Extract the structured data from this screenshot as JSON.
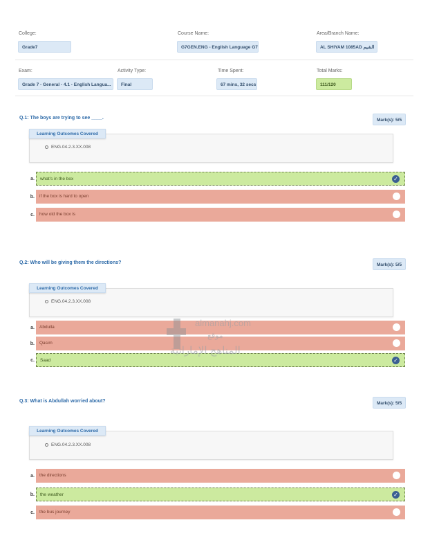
{
  "header": {
    "row1": [
      {
        "label": "College:",
        "value": "Grade7"
      },
      {
        "label": "Course Name:",
        "value": "G7GEN.ENG - English Language G7"
      },
      {
        "label": "Area/Branch Name:",
        "value": "AL SHIYAM 1085AD الشيم"
      }
    ],
    "row2": [
      {
        "label": "Exam:",
        "value": "Grade 7 - General - 4.1 - English Langua..."
      },
      {
        "label": "Activity Type:",
        "value": "Final"
      },
      {
        "label": "Time Spent:",
        "value": "67 mins, 32 secs"
      },
      {
        "label": "Total Marks:",
        "value": "111/120"
      }
    ]
  },
  "lo_title": "Learning Outcomes Covered",
  "questions": [
    {
      "title": "Q.1: The boys are trying to see ____.",
      "mark": "Mark(s): 5/5",
      "lo": "ENG.04.2.3.XX.008",
      "options": [
        {
          "letter": "a.",
          "text": "what's in the box",
          "correct": true
        },
        {
          "letter": "b.",
          "text": "if the box is hard to open",
          "correct": false
        },
        {
          "letter": "c.",
          "text": "how old the box is",
          "correct": false
        }
      ]
    },
    {
      "title": "Q.2: Who will be giving them the directions?",
      "mark": "Mark(s): 5/5",
      "lo": "ENG.04.2.3.XX.008",
      "options": [
        {
          "letter": "a.",
          "text": "Abdulla",
          "correct": false
        },
        {
          "letter": "b.",
          "text": "Qasim",
          "correct": false
        },
        {
          "letter": "c.",
          "text": "Saad",
          "correct": true
        }
      ]
    },
    {
      "title": "Q.3: What is Abdullah worried about?",
      "mark": "Mark(s): 5/5",
      "lo": "ENG.04.2.3.XX.008",
      "options": [
        {
          "letter": "a.",
          "text": "the directions",
          "correct": false
        },
        {
          "letter": "b.",
          "text": "the weather",
          "correct": true
        },
        {
          "letter": "c.",
          "text": "the bus journey",
          "correct": false
        }
      ]
    }
  ],
  "watermark": {
    "line1": "almanahj.com",
    "line2": "موقع",
    "line3": "المناهج الإماراتية"
  },
  "colors": {
    "correct": "#ccea9f",
    "wrong": "#eaa99a",
    "accent": "#2d6aa8",
    "check": "#3a5f92"
  }
}
